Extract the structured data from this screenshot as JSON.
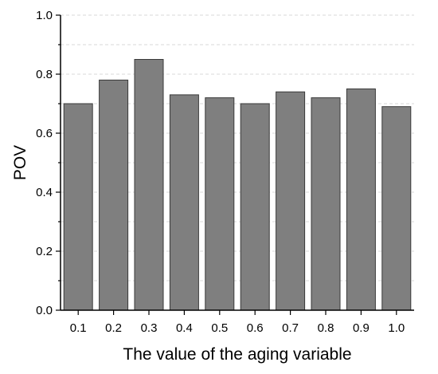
{
  "chart_data": {
    "type": "bar",
    "xlabel": "The value of the aging variable",
    "ylabel": "POV",
    "categories": [
      "0.1",
      "0.2",
      "0.3",
      "0.4",
      "0.5",
      "0.6",
      "0.7",
      "0.8",
      "0.9",
      "1.0"
    ],
    "values": [
      0.7,
      0.78,
      0.85,
      0.73,
      0.72,
      0.7,
      0.74,
      0.72,
      0.75,
      0.69
    ],
    "ylim": [
      0.0,
      1.0
    ],
    "yticks": [
      "0.0",
      "0.2",
      "0.4",
      "0.6",
      "0.8",
      "1.0"
    ],
    "grid": "horizontal dashed at 0.1 intervals",
    "colors": {
      "bar": "#7f7f7f",
      "bar_edge": "#3a3a3a",
      "grid": "#d9d9d9",
      "axis": "#000000"
    }
  }
}
